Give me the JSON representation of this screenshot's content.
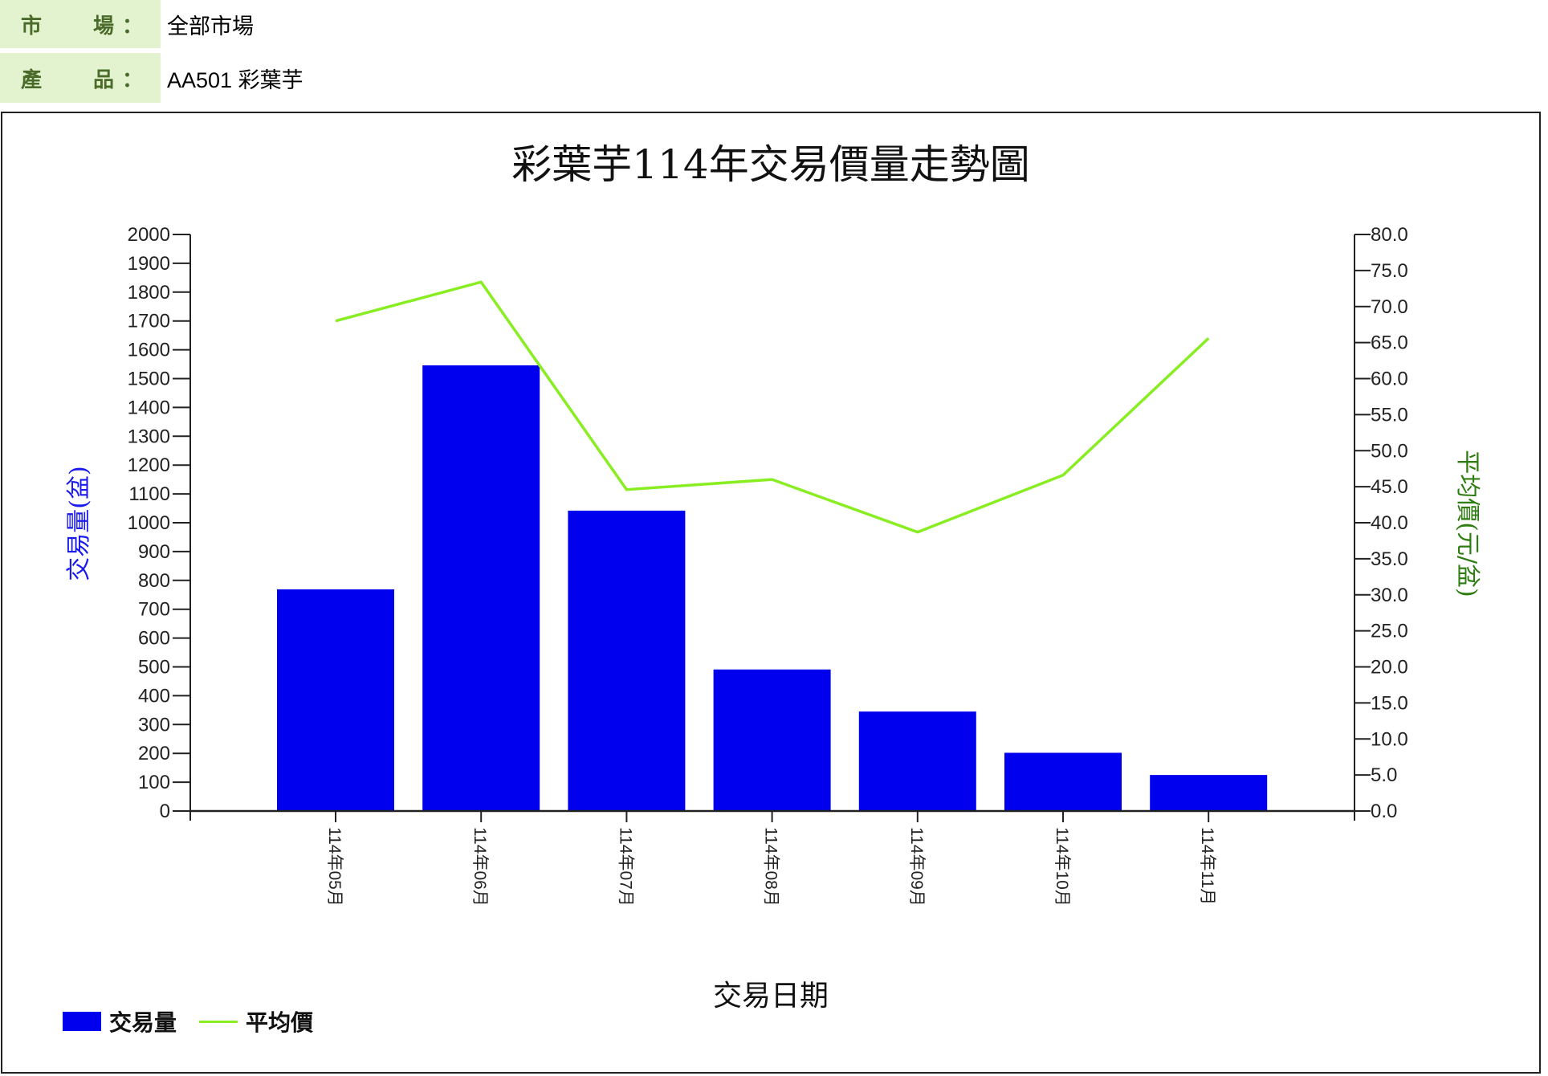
{
  "filters": {
    "market": {
      "label_chars": [
        "市",
        "場"
      ],
      "colon": "：",
      "value": "全部市場"
    },
    "product": {
      "label_chars": [
        "產",
        "品"
      ],
      "colon": "：",
      "value": "AA501 彩葉芋"
    }
  },
  "colors": {
    "bar": "#0000ee",
    "line": "#88ee22",
    "left_axis_title": "#1a1aee",
    "right_axis_title": "#2e7d10",
    "label_bg": "#e4f3cf",
    "label_text": "#4a6b2a"
  },
  "legend": {
    "volume": "交易量",
    "price": "平均價"
  },
  "chart_data": {
    "type": "bar+line",
    "title": "彩葉芋114年交易價量走勢圖",
    "xlabel": "交易日期",
    "ylabel": "交易量(盆)",
    "y2label": "平均價(元/盆)",
    "categories": [
      "114年05月",
      "114年06月",
      "114年07月",
      "114年08月",
      "114年09月",
      "114年10月",
      "114年11月"
    ],
    "series": [
      {
        "name": "交易量",
        "type": "bar",
        "axis": "left",
        "values": [
          769,
          1546,
          1042,
          491,
          345,
          202,
          125
        ]
      },
      {
        "name": "平均價",
        "type": "line",
        "axis": "right",
        "values": [
          68.0,
          73.4,
          44.6,
          46.0,
          38.7,
          46.6,
          65.6
        ]
      }
    ],
    "ylim": [
      0,
      2000
    ],
    "y2lim": [
      0,
      80
    ],
    "yticks": [
      0,
      100,
      200,
      300,
      400,
      500,
      600,
      700,
      800,
      900,
      1000,
      1100,
      1200,
      1300,
      1400,
      1500,
      1600,
      1700,
      1800,
      1900,
      2000
    ],
    "y2ticks": [
      "0.0",
      "5.0",
      "10.0",
      "15.0",
      "20.0",
      "25.0",
      "30.0",
      "35.0",
      "40.0",
      "45.0",
      "50.0",
      "55.0",
      "60.0",
      "65.0",
      "70.0",
      "75.0",
      "80.0"
    ],
    "grid": false,
    "legend_position": "bottom-left"
  }
}
